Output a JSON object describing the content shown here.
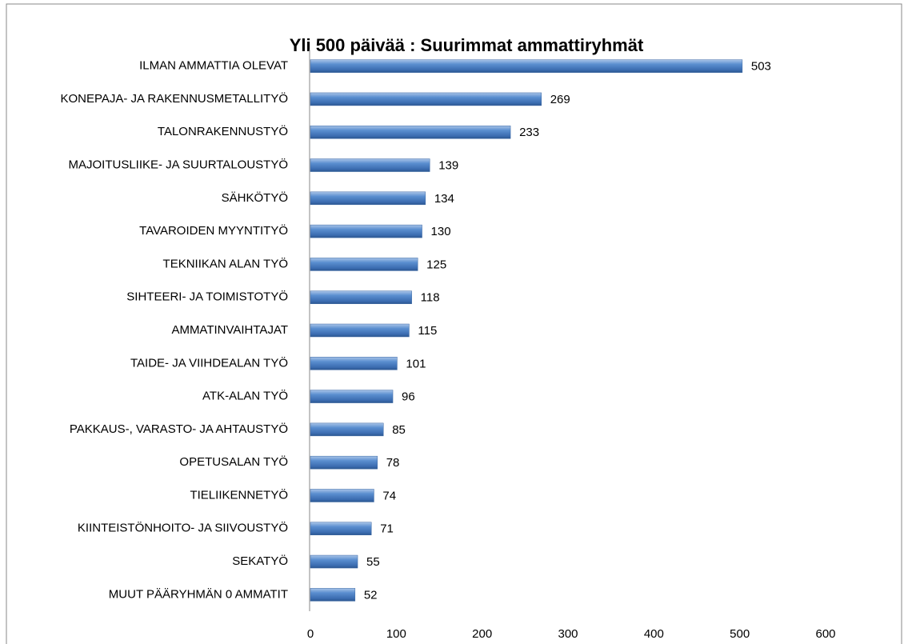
{
  "chart_data": {
    "type": "barh",
    "title": "Yli 500 päivää : Suurimmat ammattiryhmät",
    "categories": [
      "ILMAN AMMATTIA OLEVAT",
      "KONEPAJA- JA RAKENNUSMETALLITYÖ",
      "TALONRAKENNUSTYÖ",
      "MAJOITUSLIIKE- JA SUURTALOUSTYÖ",
      "SÄHKÖTYÖ",
      "TAVAROIDEN MYYNTITYÖ",
      "TEKNIIKAN ALAN TYÖ",
      "SIHTEERI- JA TOIMISTOTYÖ",
      "AMMATINVAIHTAJAT",
      "TAIDE- JA VIIHDEALAN TYÖ",
      "ATK-ALAN TYÖ",
      "PAKKAUS-, VARASTO- JA AHTAUSTYÖ",
      "OPETUSALAN TYÖ",
      "TIELIIKENNETYÖ",
      "KIINTEISTÖNHOITO- JA SIIVOUSTYÖ",
      "SEKATYÖ",
      "MUUT PÄÄRYHMÄN 0 AMMATIT"
    ],
    "values": [
      503,
      269,
      233,
      139,
      134,
      130,
      125,
      118,
      115,
      101,
      96,
      85,
      78,
      74,
      71,
      55,
      52
    ],
    "color": "#4f81bd",
    "xlim": [
      0,
      600
    ],
    "xticks": [
      0,
      100,
      200,
      300,
      400,
      500,
      600
    ],
    "grid": false
  }
}
